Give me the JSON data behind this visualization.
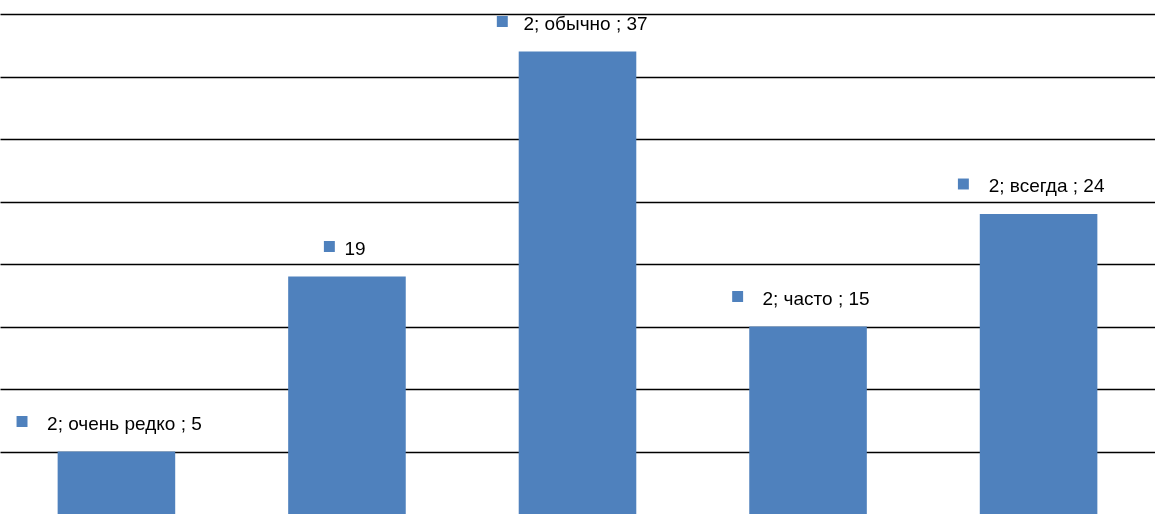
{
  "chart_data": {
    "type": "bar",
    "categories": [
      null,
      null,
      null,
      null,
      null
    ],
    "values": [
      5,
      19,
      37,
      15,
      24
    ],
    "color": "#4f81bd",
    "value_labels": [
      "2; очень редко ; 5",
      "19",
      "2; обычно ; 37",
      "2; часто ; 15",
      "2; всегда ; 24"
    ],
    "ylim": [
      0,
      40
    ],
    "yticks": [
      {
        "value": 5,
        "label": null
      },
      {
        "value": 10,
        "label": null
      },
      {
        "value": 15,
        "label": null
      },
      {
        "value": 20,
        "label": null
      },
      {
        "value": 25,
        "label": null
      },
      {
        "value": 30,
        "label": null
      },
      {
        "value": 35,
        "label": null
      },
      {
        "value": 40,
        "label": null
      }
    ],
    "grid": "y",
    "tick_labels": false
  }
}
